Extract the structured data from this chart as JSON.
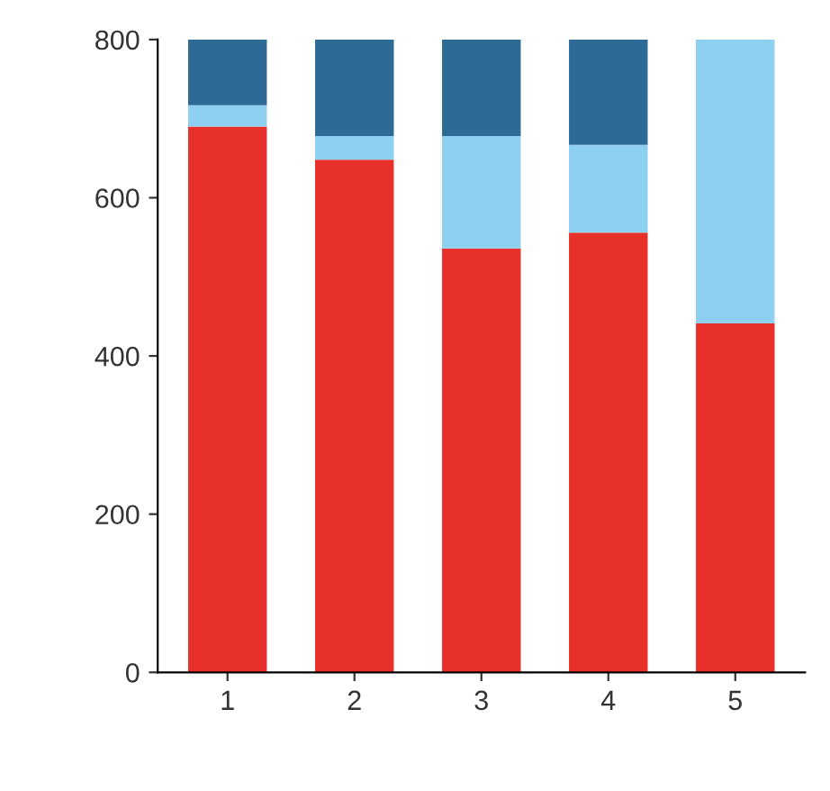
{
  "chart_data": {
    "type": "bar",
    "stacked": true,
    "categories": [
      "1",
      "2",
      "3",
      "4",
      "5"
    ],
    "series": [
      {
        "color": "#e8302a",
        "values": [
          690,
          648,
          536,
          556,
          441
        ]
      },
      {
        "color": "#8dd0f0",
        "values": [
          27,
          30,
          142,
          111,
          359
        ]
      },
      {
        "color": "#2e6a96",
        "values": [
          83,
          122,
          122,
          133,
          null
        ]
      }
    ],
    "ylim": [
      0,
      800
    ],
    "yticks": [
      0,
      200,
      400,
      600,
      800
    ],
    "grid": false,
    "legend": false
  }
}
